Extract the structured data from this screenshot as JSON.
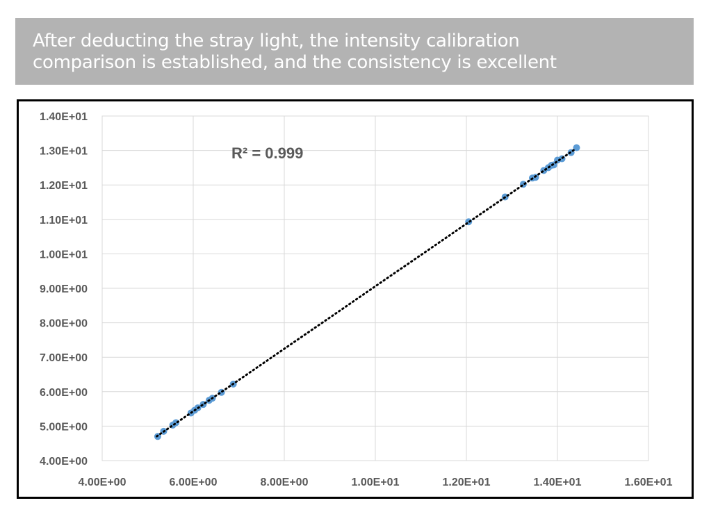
{
  "banner": {
    "line1": "After deducting the stray light, the intensity calibration",
    "line2": "comparison is established, and the consistency is excellent"
  },
  "chart_data": {
    "type": "scatter",
    "xlim": [
      4,
      16
    ],
    "ylim": [
      4,
      14
    ],
    "x_ticks": [
      "4.00E+00",
      "6.00E+00",
      "8.00E+00",
      "1.00E+01",
      "1.20E+01",
      "1.40E+01",
      "1.60E+01"
    ],
    "y_ticks": [
      "4.00E+00",
      "5.00E+00",
      "6.00E+00",
      "7.00E+00",
      "8.00E+00",
      "9.00E+00",
      "1.00E+01",
      "1.10E+01",
      "1.20E+01",
      "1.30E+01",
      "1.40E+01"
    ],
    "grid": true,
    "trendline": {
      "style": "dotted",
      "x_range": [
        5.2,
        14.4
      ],
      "label": "R² = 0.999"
    },
    "marker_color": "#5b9bd5",
    "trendline_color": "#000000",
    "points": [
      [
        5.22,
        4.7
      ],
      [
        5.35,
        4.85
      ],
      [
        5.55,
        5.03
      ],
      [
        5.62,
        5.1
      ],
      [
        5.95,
        5.38
      ],
      [
        6.03,
        5.46
      ],
      [
        6.1,
        5.53
      ],
      [
        6.22,
        5.63
      ],
      [
        6.35,
        5.75
      ],
      [
        6.42,
        5.81
      ],
      [
        6.62,
        5.98
      ],
      [
        6.88,
        6.22
      ],
      [
        12.05,
        10.93
      ],
      [
        12.85,
        11.65
      ],
      [
        13.25,
        12.02
      ],
      [
        13.45,
        12.2
      ],
      [
        13.52,
        12.22
      ],
      [
        13.7,
        12.42
      ],
      [
        13.8,
        12.5
      ],
      [
        13.87,
        12.57
      ],
      [
        13.92,
        12.58
      ],
      [
        14.0,
        12.72
      ],
      [
        14.1,
        12.76
      ],
      [
        14.3,
        12.94
      ],
      [
        14.42,
        13.08
      ]
    ]
  }
}
